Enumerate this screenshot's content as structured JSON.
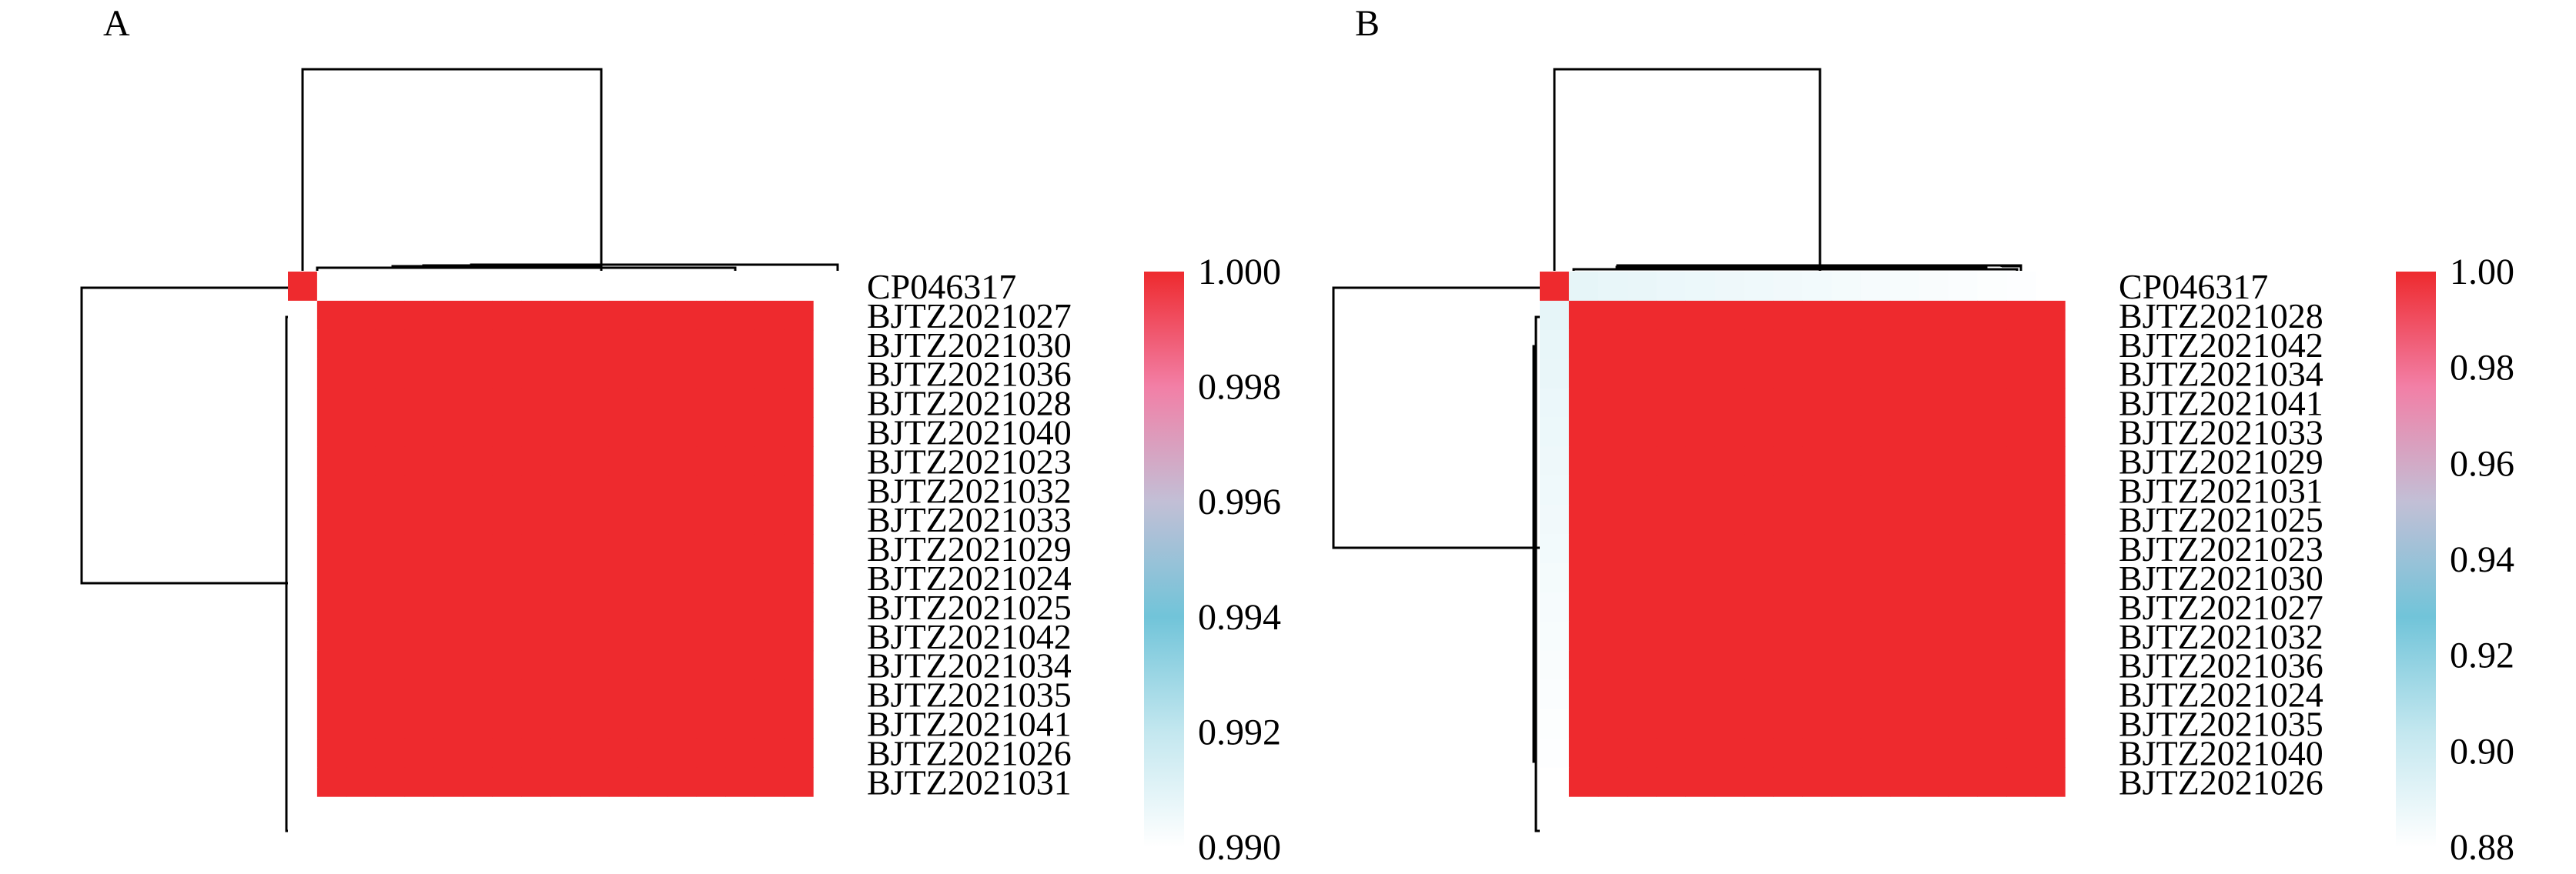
{
  "chart_data": [
    {
      "type": "heatmap",
      "panel_label": "A",
      "row_labels": [
        "CP046317",
        "BJTZ2021027",
        "BJTZ2021030",
        "BJTZ2021036",
        "BJTZ2021028",
        "BJTZ2021040",
        "BJTZ2021023",
        "BJTZ2021032",
        "BJTZ2021033",
        "BJTZ2021029",
        "BJTZ2021024",
        "BJTZ2021025",
        "BJTZ2021042",
        "BJTZ2021034",
        "BJTZ2021035",
        "BJTZ2021041",
        "BJTZ2021026",
        "BJTZ2021031"
      ],
      "value_summary": {
        "diagonal": 1.0,
        "cluster_pairwise": 1.0,
        "cp046317_vs_cluster": 0.99
      },
      "colorbar": {
        "range": [
          0.99,
          1.0
        ],
        "ticks": [
          "1.000",
          "0.998",
          "0.996",
          "0.994",
          "0.992",
          "0.990"
        ],
        "colors": [
          "#ee2a2e",
          "#f27fa6",
          "#c2bfd6",
          "#71c4d9",
          "#c3e7ef",
          "#ffffff"
        ]
      },
      "legend_position": "right"
    },
    {
      "type": "heatmap",
      "panel_label": "B",
      "row_labels": [
        "CP046317",
        "BJTZ2021028",
        "BJTZ2021042",
        "BJTZ2021034",
        "BJTZ2021041",
        "BJTZ2021033",
        "BJTZ2021029",
        "BJTZ2021031",
        "BJTZ2021025",
        "BJTZ2021023",
        "BJTZ2021030",
        "BJTZ2021027",
        "BJTZ2021032",
        "BJTZ2021036",
        "BJTZ2021024",
        "BJTZ2021035",
        "BJTZ2021040",
        "BJTZ2021026"
      ],
      "value_summary": {
        "diagonal": 1.0,
        "cluster_pairwise": 1.0,
        "cp046317_vs_cluster_first": 0.89,
        "cp046317_vs_cluster_last": 0.88
      },
      "colorbar": {
        "range": [
          0.88,
          1.0
        ],
        "ticks": [
          "1.00",
          "0.98",
          "0.96",
          "0.94",
          "0.92",
          "0.90",
          "0.88"
        ],
        "colors": [
          "#ee2a2e",
          "#f27fa6",
          "#c2bfd6",
          "#71c4d9",
          "#c3e7ef",
          "#ffffff"
        ]
      },
      "legend_position": "right"
    }
  ]
}
